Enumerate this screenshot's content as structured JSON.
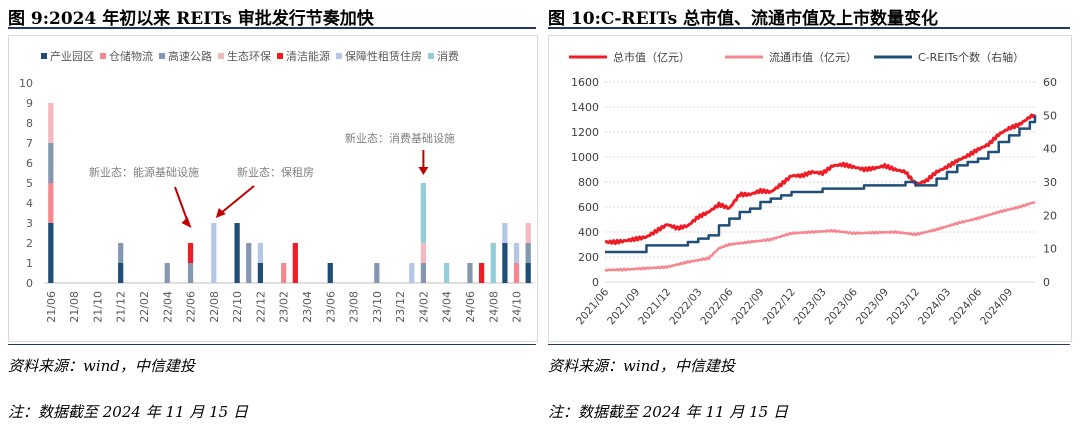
{
  "left": {
    "title": "图 9:2024 年初以来 REITs 审批发行节奏加快",
    "source": "资料来源：wind，中信建投",
    "note": "注：数据截至 2024 年 11 月 15 日"
  },
  "right": {
    "title": "图 10:C-REITs 总市值、流通市值及上市数量变化",
    "source": "资料来源：wind，中信建投",
    "note": "注：数据截至 2024 年 11 月 15 日"
  },
  "chart_data": [
    {
      "type": "bar",
      "stacked": true,
      "title": "",
      "categories": [
        "21/06",
        "21/07",
        "21/08",
        "21/09",
        "21/10",
        "21/11",
        "21/12",
        "22/01",
        "22/02",
        "22/03",
        "22/04",
        "22/05",
        "22/06",
        "22/07",
        "22/08",
        "22/09",
        "22/10",
        "22/11",
        "22/12",
        "23/01",
        "23/02",
        "23/03",
        "23/04",
        "23/05",
        "23/06",
        "23/07",
        "23/08",
        "23/09",
        "23/10",
        "23/11",
        "23/12",
        "24/01",
        "24/02",
        "24/03",
        "24/04",
        "24/05",
        "24/06",
        "24/07",
        "24/08",
        "24/09",
        "24/10",
        "24/11"
      ],
      "x_tick_labels": [
        "21/06",
        "21/08",
        "21/10",
        "21/12",
        "22/02",
        "22/04",
        "22/06",
        "22/08",
        "22/10",
        "22/12",
        "23/02",
        "23/04",
        "23/06",
        "23/08",
        "23/10",
        "23/12",
        "24/02",
        "24/04",
        "24/06",
        "24/08",
        "24/10"
      ],
      "ylim": [
        0,
        10
      ],
      "yticks": [
        0,
        1,
        2,
        3,
        4,
        5,
        6,
        7,
        8,
        9,
        10
      ],
      "series": [
        {
          "name": "产业园区",
          "color": "#1f4e79",
          "values": [
            3,
            0,
            0,
            0,
            0,
            0,
            1,
            0,
            0,
            0,
            0,
            0,
            0,
            0,
            0,
            0,
            3,
            0,
            1,
            0,
            0,
            0,
            0,
            0,
            1,
            0,
            0,
            0,
            0,
            0,
            0,
            0,
            0,
            0,
            0,
            0,
            0,
            0,
            0,
            2,
            0,
            1
          ]
        },
        {
          "name": "仓储物流",
          "color": "#f4878f",
          "values": [
            2,
            0,
            0,
            0,
            0,
            0,
            0,
            0,
            0,
            0,
            0,
            0,
            0,
            0,
            0,
            0,
            0,
            0,
            0,
            0,
            1,
            0,
            0,
            0,
            0,
            0,
            0,
            0,
            0,
            0,
            0,
            0,
            0,
            0,
            0,
            0,
            0,
            0,
            0,
            0,
            1,
            0
          ]
        },
        {
          "name": "高速公路",
          "color": "#8497b0",
          "values": [
            2,
            0,
            0,
            0,
            0,
            0,
            1,
            0,
            0,
            0,
            1,
            0,
            1,
            0,
            0,
            0,
            0,
            2,
            0,
            0,
            0,
            0,
            0,
            0,
            0,
            0,
            0,
            0,
            1,
            0,
            0,
            0,
            1,
            0,
            0,
            0,
            1,
            0,
            0,
            0,
            0,
            1
          ]
        },
        {
          "name": "生态环保",
          "color": "#f4b8be",
          "values": [
            2,
            0,
            0,
            0,
            0,
            0,
            0,
            0,
            0,
            0,
            0,
            0,
            0,
            0,
            0,
            0,
            0,
            0,
            0,
            0,
            0,
            0,
            0,
            0,
            0,
            0,
            0,
            0,
            0,
            0,
            0,
            0,
            1,
            0,
            0,
            0,
            0,
            0,
            0,
            0,
            0,
            1
          ]
        },
        {
          "name": "清洁能源",
          "color": "#ee1c25",
          "values": [
            0,
            0,
            0,
            0,
            0,
            0,
            0,
            0,
            0,
            0,
            0,
            0,
            1,
            0,
            0,
            0,
            0,
            0,
            0,
            0,
            0,
            2,
            0,
            0,
            0,
            0,
            0,
            0,
            0,
            0,
            0,
            0,
            0,
            0,
            0,
            0,
            0,
            1,
            0,
            0,
            0,
            0
          ]
        },
        {
          "name": "保障性租赁住房",
          "color": "#b4c7e7",
          "values": [
            0,
            0,
            0,
            0,
            0,
            0,
            0,
            0,
            0,
            0,
            0,
            0,
            0,
            0,
            3,
            0,
            0,
            0,
            1,
            0,
            0,
            0,
            0,
            0,
            0,
            0,
            0,
            0,
            0,
            0,
            0,
            1,
            0,
            0,
            0,
            0,
            0,
            0,
            0,
            1,
            1,
            0
          ]
        },
        {
          "name": "消费",
          "color": "#92cddc",
          "values": [
            0,
            0,
            0,
            0,
            0,
            0,
            0,
            0,
            0,
            0,
            0,
            0,
            0,
            0,
            0,
            0,
            0,
            0,
            0,
            0,
            0,
            0,
            0,
            0,
            0,
            0,
            0,
            0,
            0,
            0,
            0,
            0,
            3,
            0,
            1,
            0,
            0,
            0,
            2,
            0,
            0,
            0
          ]
        }
      ],
      "annotations": [
        {
          "text": "新业态：能源基础设施",
          "target": "22/06"
        },
        {
          "text": "新业态：保租房",
          "target": "22/08"
        },
        {
          "text": "新业态：消费基础设施",
          "target": "24/02"
        }
      ]
    },
    {
      "type": "line",
      "title": "",
      "x_tick_labels": [
        "2021/06",
        "2021/09",
        "2021/12",
        "2022/03",
        "2022/06",
        "2022/09",
        "2022/12",
        "2023/03",
        "2023/06",
        "2023/09",
        "2023/12",
        "2024/03",
        "2024/06",
        "2024/09"
      ],
      "x_range_months": [
        0,
        41.5
      ],
      "ylim_left": [
        0,
        1600
      ],
      "yticks_left": [
        0,
        200,
        400,
        600,
        800,
        1000,
        1200,
        1400,
        1600
      ],
      "ylim_right": [
        0,
        60
      ],
      "yticks_right": [
        0,
        10,
        20,
        30,
        40,
        50,
        60
      ],
      "series": [
        {
          "name": "总市值（亿元）",
          "color": "#ee1c25",
          "axis": "left",
          "points": [
            [
              0,
              320
            ],
            [
              1,
              320
            ],
            [
              2,
              330
            ],
            [
              3,
              345
            ],
            [
              4,
              360
            ],
            [
              5,
              410
            ],
            [
              6,
              460
            ],
            [
              7,
              430
            ],
            [
              8,
              450
            ],
            [
              9,
              520
            ],
            [
              10,
              560
            ],
            [
              11,
              620
            ],
            [
              12,
              590
            ],
            [
              13,
              700
            ],
            [
              14,
              700
            ],
            [
              15,
              730
            ],
            [
              16,
              720
            ],
            [
              17,
              780
            ],
            [
              18,
              850
            ],
            [
              19,
              850
            ],
            [
              20,
              880
            ],
            [
              21,
              870
            ],
            [
              22,
              930
            ],
            [
              23,
              940
            ],
            [
              24,
              920
            ],
            [
              25,
              900
            ],
            [
              26,
              910
            ],
            [
              27,
              930
            ],
            [
              28,
              900
            ],
            [
              29,
              880
            ],
            [
              30,
              780
            ],
            [
              31,
              810
            ],
            [
              32,
              880
            ],
            [
              33,
              920
            ],
            [
              34,
              970
            ],
            [
              35,
              1010
            ],
            [
              36,
              1060
            ],
            [
              37,
              1100
            ],
            [
              38,
              1180
            ],
            [
              39,
              1230
            ],
            [
              40,
              1260
            ],
            [
              41,
              1320
            ],
            [
              41.5,
              1340
            ]
          ]
        },
        {
          "name": "流通市值（亿元）",
          "color": "#f4878f",
          "axis": "left",
          "points": [
            [
              0,
              95
            ],
            [
              2,
              100
            ],
            [
              4,
              110
            ],
            [
              6,
              120
            ],
            [
              8,
              160
            ],
            [
              10,
              190
            ],
            [
              11,
              270
            ],
            [
              12,
              300
            ],
            [
              14,
              320
            ],
            [
              16,
              340
            ],
            [
              18,
              390
            ],
            [
              20,
              400
            ],
            [
              22,
              410
            ],
            [
              24,
              390
            ],
            [
              26,
              395
            ],
            [
              28,
              400
            ],
            [
              30,
              380
            ],
            [
              32,
              420
            ],
            [
              34,
              470
            ],
            [
              36,
              510
            ],
            [
              38,
              560
            ],
            [
              40,
              600
            ],
            [
              41.5,
              640
            ]
          ]
        },
        {
          "name": "C-REITs个数（右轴）",
          "color": "#1f4e79",
          "axis": "right",
          "points": [
            [
              0,
              9
            ],
            [
              3,
              9
            ],
            [
              4,
              11
            ],
            [
              7,
              11
            ],
            [
              8,
              12
            ],
            [
              9,
              13
            ],
            [
              10,
              14
            ],
            [
              11,
              17
            ],
            [
              12,
              19
            ],
            [
              13,
              21
            ],
            [
              14,
              22
            ],
            [
              15,
              24
            ],
            [
              16,
              25
            ],
            [
              17,
              26
            ],
            [
              18,
              27
            ],
            [
              20,
              27
            ],
            [
              21,
              28
            ],
            [
              24,
              28
            ],
            [
              25,
              29
            ],
            [
              29,
              30
            ],
            [
              30,
              29
            ],
            [
              32,
              31
            ],
            [
              33,
              33
            ],
            [
              34,
              35
            ],
            [
              35,
              36
            ],
            [
              36,
              37
            ],
            [
              37,
              39
            ],
            [
              38,
              42
            ],
            [
              39,
              44
            ],
            [
              40,
              46
            ],
            [
              41,
              48
            ],
            [
              41.5,
              50
            ]
          ]
        }
      ]
    }
  ]
}
